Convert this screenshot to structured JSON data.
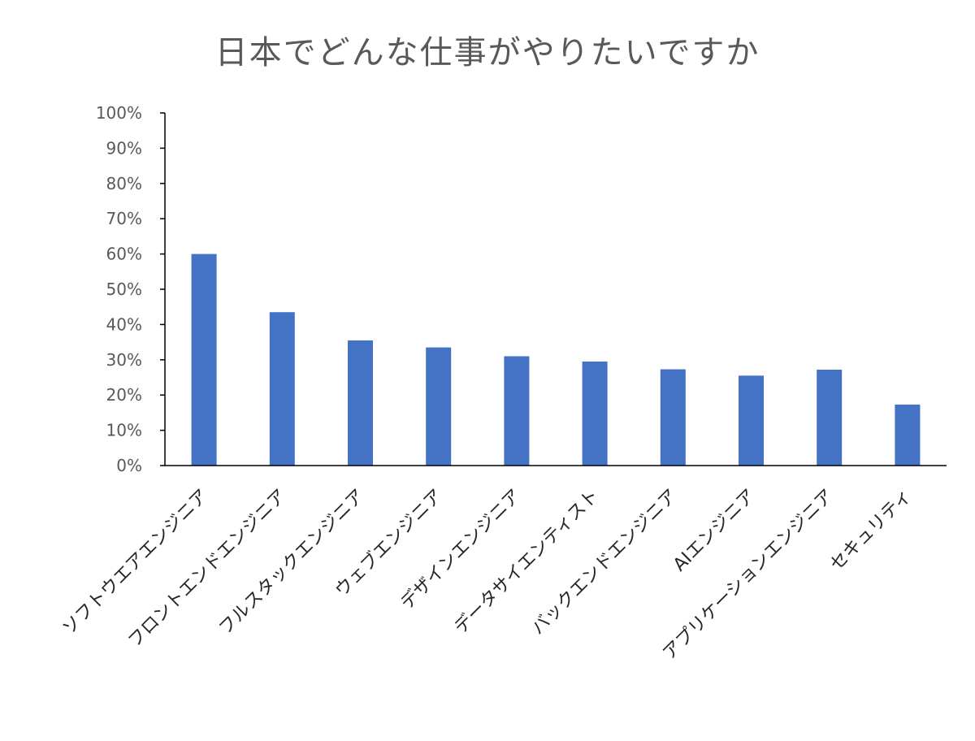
{
  "chart_data": {
    "type": "bar",
    "title": "日本でどんな仕事がやりたいですか",
    "categories": [
      "ソフトウエアエンジニア",
      "フロントエンドエンジニア",
      "フルスタックエンジニア",
      "ウェブエンジニア",
      "デザインエンジニア",
      "データサイエンティスト",
      "バックエンドエンジニア",
      "AIエンジニア",
      "アプリケーションエンジニア",
      "セキュリティ"
    ],
    "values": [
      0.6,
      0.435,
      0.355,
      0.335,
      0.31,
      0.295,
      0.273,
      0.255,
      0.272,
      0.173
    ],
    "yticks": [
      "0%",
      "10%",
      "20%",
      "30%",
      "40%",
      "50%",
      "60%",
      "70%",
      "80%",
      "90%",
      "100%"
    ],
    "ylim": [
      0,
      1
    ],
    "xlabel": "",
    "ylabel": "",
    "grid": false,
    "legend": "none",
    "bar_color": "#4472C4",
    "axis_color": "#000000",
    "tick_label_color": "#595959"
  }
}
